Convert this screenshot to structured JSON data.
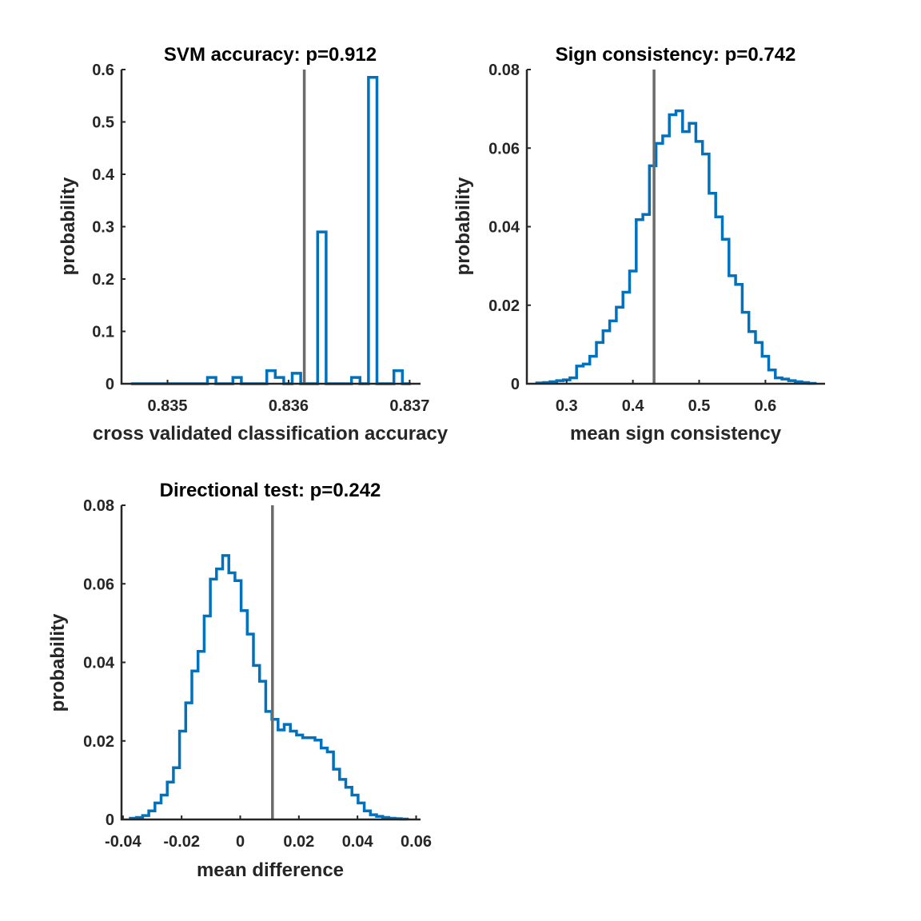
{
  "chart_data": [
    {
      "type": "histogram",
      "title": "SVM accuracy: p=0.912",
      "xlabel": "cross validated classification accuracy",
      "ylabel": "probability",
      "xlim": [
        0.83462,
        0.83709
      ],
      "ylim": [
        0,
        0.6
      ],
      "xticks": [
        0.835,
        0.836,
        0.837
      ],
      "xtick_labels": [
        "0.835",
        "0.836",
        "0.837"
      ],
      "yticks": [
        0,
        0.1,
        0.2,
        0.3,
        0.4,
        0.5,
        0.6
      ],
      "ytick_labels": [
        "0",
        "0.1",
        "0.2",
        "0.3",
        "0.4",
        "0.5",
        "0.6"
      ],
      "observed_line": 0.83613,
      "bin_edges": [
        0.8347,
        0.83477,
        0.83484,
        0.83491,
        0.83498,
        0.83505,
        0.83512,
        0.83519,
        0.83526,
        0.83533,
        0.8354,
        0.83547,
        0.83554,
        0.83561,
        0.83568,
        0.83575,
        0.83582,
        0.83589,
        0.83596,
        0.83603,
        0.8361,
        0.83617,
        0.83624,
        0.83631,
        0.83638,
        0.83645,
        0.83652,
        0.83659,
        0.83666,
        0.83673,
        0.8368,
        0.83687,
        0.83694,
        0.83701
      ],
      "values": [
        0,
        0,
        0,
        0,
        0,
        0,
        0,
        0,
        0,
        0.012,
        0,
        0,
        0.012,
        0,
        0,
        0,
        0.025,
        0.012,
        0,
        0.02,
        0,
        0,
        0.29,
        0,
        0,
        0,
        0.012,
        0,
        0.585,
        0,
        0,
        0.025,
        0
      ]
    },
    {
      "type": "histogram",
      "title": "Sign consistency: p=0.742",
      "xlabel": "mean sign consistency",
      "ylabel": "probability",
      "xlim": [
        0.24,
        0.69
      ],
      "ylim": [
        0,
        0.08
      ],
      "xticks": [
        0.3,
        0.4,
        0.5,
        0.6
      ],
      "xtick_labels": [
        "0.3",
        "0.4",
        "0.5",
        "0.6"
      ],
      "yticks": [
        0,
        0.02,
        0.04,
        0.06,
        0.08
      ],
      "ytick_labels": [
        "0",
        "0.02",
        "0.04",
        "0.06",
        "0.08"
      ],
      "observed_line": 0.432,
      "bin_edges": [
        0.255,
        0.265,
        0.275,
        0.285,
        0.295,
        0.305,
        0.315,
        0.325,
        0.335,
        0.345,
        0.355,
        0.365,
        0.375,
        0.385,
        0.395,
        0.405,
        0.415,
        0.425,
        0.435,
        0.445,
        0.455,
        0.465,
        0.475,
        0.485,
        0.495,
        0.505,
        0.515,
        0.525,
        0.535,
        0.545,
        0.555,
        0.565,
        0.575,
        0.585,
        0.595,
        0.605,
        0.615,
        0.625,
        0.635,
        0.645,
        0.655,
        0.665,
        0.675
      ],
      "values": [
        0.0002,
        0.0003,
        0.0005,
        0.0008,
        0.001,
        0.0015,
        0.0045,
        0.005,
        0.007,
        0.0105,
        0.0135,
        0.016,
        0.0195,
        0.0233,
        0.0287,
        0.0418,
        0.0431,
        0.0555,
        0.0612,
        0.0631,
        0.0685,
        0.0695,
        0.0642,
        0.0663,
        0.0617,
        0.0585,
        0.0485,
        0.0425,
        0.0368,
        0.0275,
        0.0253,
        0.0182,
        0.0133,
        0.0105,
        0.007,
        0.0035,
        0.0015,
        0.0012,
        0.0008,
        0.0005,
        0.0003,
        0.0001
      ]
    },
    {
      "type": "histogram",
      "title": "Directional test: p=0.242",
      "xlabel": "mean difference",
      "ylabel": "probability",
      "xlim": [
        -0.0405,
        0.0615
      ],
      "ylim": [
        0,
        0.08
      ],
      "xticks": [
        -0.04,
        -0.02,
        0,
        0.02,
        0.04,
        0.06
      ],
      "xtick_labels": [
        "-0.04",
        "-0.02",
        "0",
        "0.02",
        "0.04",
        "0.06"
      ],
      "yticks": [
        0,
        0.02,
        0.04,
        0.06,
        0.08
      ],
      "ytick_labels": [
        "0",
        "0.02",
        "0.04",
        "0.06",
        "0.08"
      ],
      "observed_line": 0.011,
      "bin_edges": [
        -0.0375,
        -0.0354,
        -0.0333,
        -0.0312,
        -0.0291,
        -0.027,
        -0.0249,
        -0.0228,
        -0.0207,
        -0.0186,
        -0.0165,
        -0.0144,
        -0.0123,
        -0.0102,
        -0.0081,
        -0.006,
        -0.0039,
        -0.0018,
        0.0003,
        0.0024,
        0.0045,
        0.0066,
        0.0087,
        0.0108,
        0.0129,
        0.015,
        0.0171,
        0.0192,
        0.0213,
        0.0234,
        0.0255,
        0.0276,
        0.0297,
        0.0318,
        0.0339,
        0.036,
        0.0381,
        0.0402,
        0.0423,
        0.0444,
        0.0465,
        0.0486,
        0.0507,
        0.0528,
        0.0549,
        0.057
      ],
      "values": [
        0.0003,
        0.0005,
        0.001,
        0.0022,
        0.0042,
        0.0062,
        0.0095,
        0.0132,
        0.0225,
        0.0297,
        0.0378,
        0.0428,
        0.0518,
        0.0612,
        0.0638,
        0.0672,
        0.0628,
        0.0608,
        0.0532,
        0.0472,
        0.0392,
        0.0352,
        0.0275,
        0.0255,
        0.0228,
        0.0242,
        0.0225,
        0.0215,
        0.0208,
        0.0208,
        0.0202,
        0.0182,
        0.0172,
        0.0128,
        0.0102,
        0.0082,
        0.0062,
        0.0042,
        0.0022,
        0.0012,
        0.0008,
        0.0005,
        0.0003,
        0.0002,
        0.0001
      ]
    }
  ]
}
